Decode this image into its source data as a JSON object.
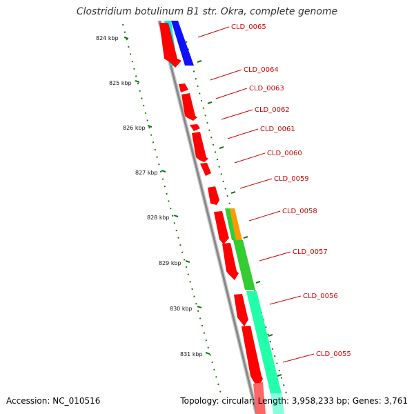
{
  "title": "Clostridium botulinum B1 str. Okra, complete genome",
  "kbp_labels": [
    "824 kbp",
    "825 kbp",
    "826 kbp",
    "827 kbp",
    "828 kbp",
    "829 kbp",
    "830 kbp",
    "831 kbp"
  ],
  "gene_labels": [
    "CLD_0065",
    "CLD_0064",
    "CLD_0063",
    "CLD_0062",
    "CLD_0061",
    "CLD_0060",
    "CLD_0059",
    "CLD_0058",
    "CLD_0057",
    "CLD_0056",
    "CLD_0055"
  ],
  "footer": {
    "accession": "Accession: NC_010516",
    "summary": "Topology: circular; Length: 3,958,233 bp; Genes: 3,761"
  },
  "colors": {
    "cds": "#ff0000",
    "blue_track": "#1010ff",
    "cyan_track": "#00eeee",
    "green_track": "#33cc33",
    "teal_track": "#22ffaa",
    "orange_track": "#ff9900",
    "backbone": "#888888",
    "ticks": "#117711"
  }
}
